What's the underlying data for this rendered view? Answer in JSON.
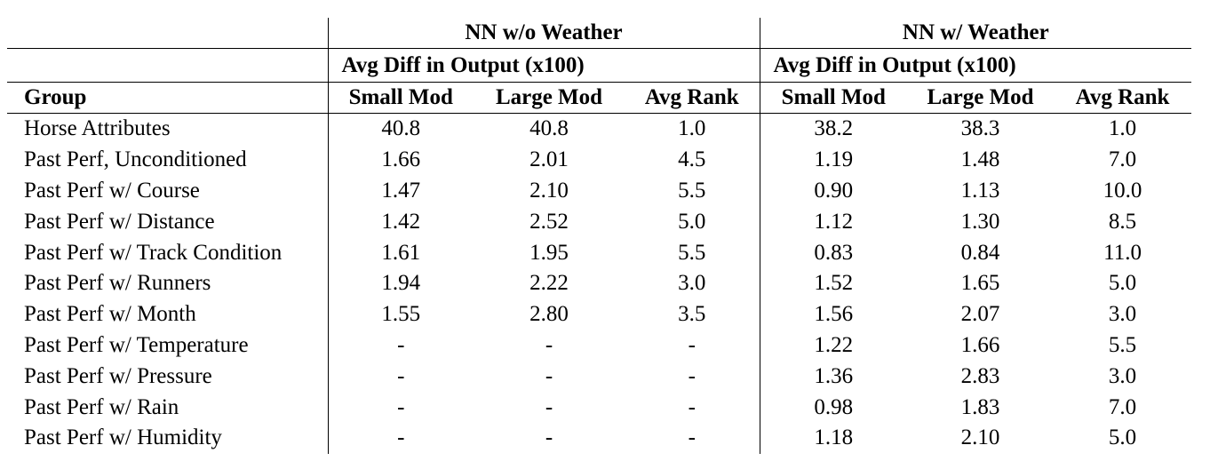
{
  "table": {
    "group_a_title": "NN w/o Weather",
    "group_b_title": "NN w/ Weather",
    "group_a_subtitle": "Avg Diff in Output (x100)",
    "group_b_subtitle": "Avg Diff in Output (x100)",
    "columns": [
      "Group",
      "Small Mod",
      "Large Mod",
      "Avg Rank",
      "Small Mod",
      "Large Mod",
      "Avg Rank"
    ],
    "rows": [
      [
        "Horse Attributes",
        "40.8",
        "40.8",
        "1.0",
        "38.2",
        "38.3",
        "1.0"
      ],
      [
        "Past Perf, Unconditioned",
        "1.66",
        "2.01",
        "4.5",
        "1.19",
        "1.48",
        "7.0"
      ],
      [
        "Past Perf w/ Course",
        "1.47",
        "2.10",
        "5.5",
        "0.90",
        "1.13",
        "10.0"
      ],
      [
        "Past Perf w/ Distance",
        "1.42",
        "2.52",
        "5.0",
        "1.12",
        "1.30",
        "8.5"
      ],
      [
        "Past Perf w/ Track Condition",
        "1.61",
        "1.95",
        "5.5",
        "0.83",
        "0.84",
        "11.0"
      ],
      [
        "Past Perf w/ Runners",
        "1.94",
        "2.22",
        "3.0",
        "1.52",
        "1.65",
        "5.0"
      ],
      [
        "Past Perf w/ Month",
        "1.55",
        "2.80",
        "3.5",
        "1.56",
        "2.07",
        "3.0"
      ],
      [
        "Past Perf w/ Temperature",
        "-",
        "-",
        "-",
        "1.22",
        "1.66",
        "5.5"
      ],
      [
        "Past Perf w/ Pressure",
        "-",
        "-",
        "-",
        "1.36",
        "2.83",
        "3.0"
      ],
      [
        "Past Perf w/ Rain",
        "-",
        "-",
        "-",
        "0.98",
        "1.83",
        "7.0"
      ],
      [
        "Past Perf w/ Humidity",
        "-",
        "-",
        "-",
        "1.18",
        "2.10",
        "5.0"
      ]
    ]
  }
}
